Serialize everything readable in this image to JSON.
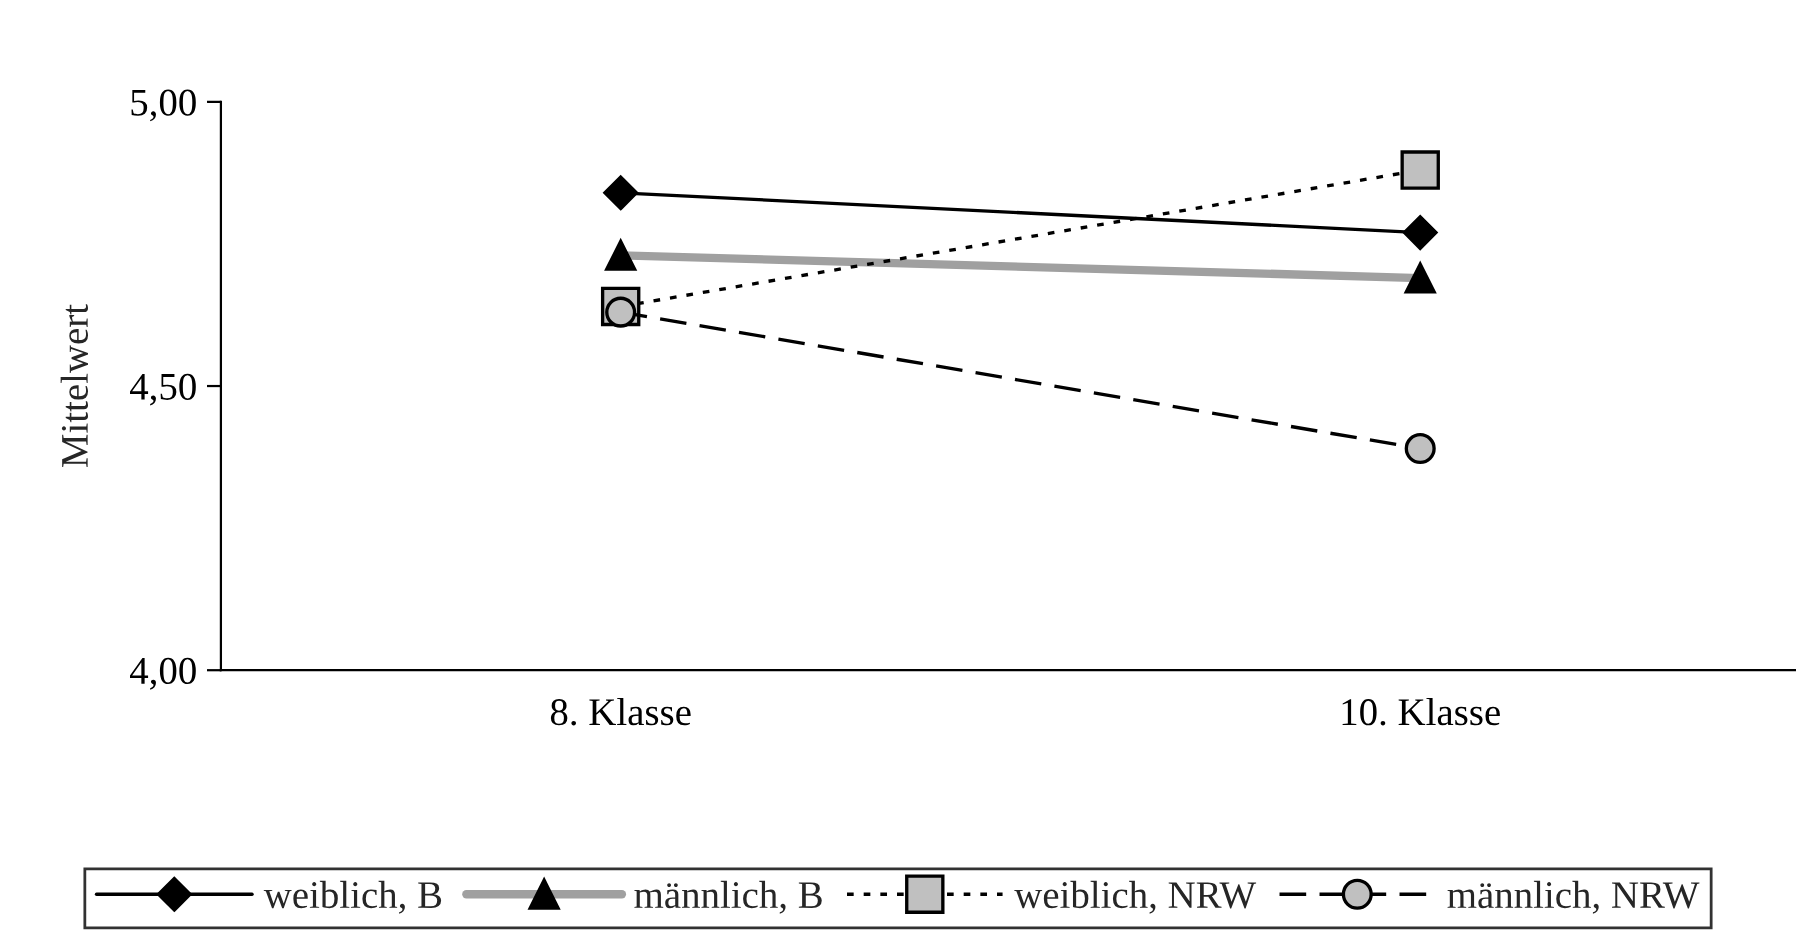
{
  "chart_data": {
    "type": "line",
    "ylabel": "Mittelwert",
    "categories": [
      "8. Klasse",
      "10. Klasse"
    ],
    "ylim": [
      4.0,
      5.0
    ],
    "yticks": [
      {
        "value": 4.0,
        "label": "4,00"
      },
      {
        "value": 4.5,
        "label": "4,50"
      },
      {
        "value": 5.0,
        "label": "5,00"
      }
    ],
    "grid": false,
    "legend": "bottom",
    "series": [
      {
        "name": "weiblich, B",
        "color": "#000000",
        "marker": "diamond",
        "line_style": "solid",
        "values": [
          4.84,
          4.77
        ]
      },
      {
        "name": "männlich, B",
        "color": "#a0a0a0",
        "marker": "triangle",
        "line_style": "solid",
        "values": [
          4.73,
          4.69
        ]
      },
      {
        "name": "weiblich, NRW",
        "color": "#000000",
        "marker": "square",
        "line_style": "dotted",
        "values": [
          4.64,
          4.88
        ]
      },
      {
        "name": "männlich, NRW",
        "color": "#000000",
        "marker": "circle",
        "line_style": "dashed",
        "values": [
          4.63,
          4.39
        ]
      }
    ]
  }
}
